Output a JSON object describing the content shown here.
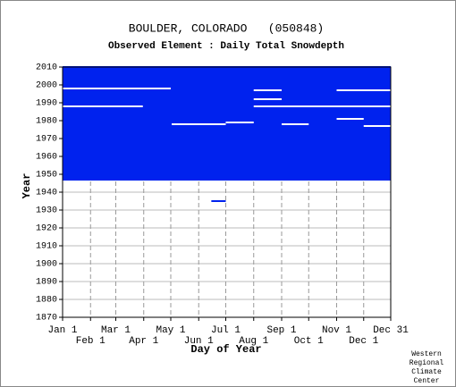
{
  "chart_data": {
    "type": "availability",
    "title": "BOULDER, COLORADO   (050848)",
    "subtitle": "Observed Element : Daily Total Snowdepth",
    "xlabel": "Day of Year",
    "ylabel": "Year",
    "xlim": [
      1,
      365
    ],
    "ylim": [
      1870,
      2010
    ],
    "xticks": [
      {
        "value": 1,
        "label": "Jan 1"
      },
      {
        "value": 32,
        "label": "Feb 1"
      },
      {
        "value": 60,
        "label": "Mar 1"
      },
      {
        "value": 91,
        "label": "Apr 1"
      },
      {
        "value": 121,
        "label": "May 1"
      },
      {
        "value": 152,
        "label": "Jun 1"
      },
      {
        "value": 182,
        "label": "Jul 1"
      },
      {
        "value": 213,
        "label": "Aug 1"
      },
      {
        "value": 244,
        "label": "Sep 1"
      },
      {
        "value": 274,
        "label": "Oct 1"
      },
      {
        "value": 305,
        "label": "Nov 1"
      },
      {
        "value": 335,
        "label": "Dec 1"
      },
      {
        "value": 365,
        "label": "Dec 31"
      }
    ],
    "yticks": [
      1870,
      1880,
      1890,
      1900,
      1910,
      1920,
      1930,
      1940,
      1950,
      1960,
      1970,
      1980,
      1990,
      2000,
      2010
    ],
    "grid": true,
    "color": "#0022ee",
    "gap_color": "#ffffff",
    "blocks": [
      {
        "x": [
          1,
          365
        ],
        "y": [
          1947,
          2010
        ]
      },
      {
        "x": [
          166,
          182
        ],
        "y": [
          1935,
          1935
        ]
      }
    ],
    "gaps": [
      {
        "x": [
          1,
          121
        ],
        "y": 1998
      },
      {
        "x": [
          1,
          90
        ],
        "y": 1988
      },
      {
        "x": [
          122,
          182
        ],
        "y": 1978
      },
      {
        "x": [
          182,
          213
        ],
        "y": 1979
      },
      {
        "x": [
          213,
          244
        ],
        "y": 1997
      },
      {
        "x": [
          213,
          244
        ],
        "y": 1992
      },
      {
        "x": [
          213,
          365
        ],
        "y": 1988
      },
      {
        "x": [
          244,
          274
        ],
        "y": 1978
      },
      {
        "x": [
          305,
          365
        ],
        "y": 1997
      },
      {
        "x": [
          305,
          335
        ],
        "y": 1981
      },
      {
        "x": [
          335,
          365
        ],
        "y": 1977
      }
    ],
    "footer": [
      "Western",
      "Regional",
      "Climate",
      "Center"
    ]
  }
}
